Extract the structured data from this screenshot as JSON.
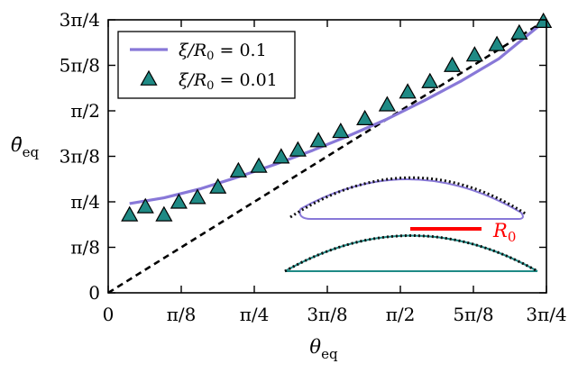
{
  "chart_data": {
    "type": "line",
    "xlabel": "θeq",
    "ylabel": "θ̄eq",
    "xlim": [
      0,
      2.35619
    ],
    "ylim": [
      0,
      2.35619
    ],
    "xticks": [
      0,
      0.392699,
      0.785398,
      1.178097,
      1.570796,
      1.963495,
      2.356194
    ],
    "xtick_labels": [
      "0",
      "π/8",
      "π/4",
      "3π/8",
      "π/2",
      "5π/8",
      "3π/4"
    ],
    "yticks": [
      0,
      0.392699,
      0.785398,
      1.178097,
      1.570796,
      1.963495,
      2.356194
    ],
    "ytick_labels": [
      "0",
      "π/8",
      "π/4",
      "3π/8",
      "π/2",
      "5π/8",
      "3π/4"
    ],
    "grid": false,
    "legend_position": "top-left",
    "series": [
      {
        "name": "ξ/R0 = 0.1",
        "style": "line",
        "color": "#8878d8",
        "x": [
          0.115,
          0.3,
          0.5,
          0.7,
          0.9,
          1.1,
          1.3,
          1.5,
          1.7,
          1.9,
          2.1,
          2.356
        ],
        "y": [
          0.77,
          0.82,
          0.9,
          1.0,
          1.11,
          1.23,
          1.36,
          1.5,
          1.66,
          1.83,
          2.02,
          2.356
        ]
      },
      {
        "name": "ξ/R0 = 0.01",
        "style": "marker",
        "marker": "triangle",
        "color": "#1f8a85",
        "x": [
          0.115,
          0.2,
          0.3,
          0.38,
          0.48,
          0.59,
          0.7,
          0.81,
          0.93,
          1.02,
          1.13,
          1.25,
          1.38,
          1.5,
          1.61,
          1.73,
          1.85,
          1.97,
          2.09,
          2.21,
          2.34
        ],
        "y": [
          0.67,
          0.74,
          0.67,
          0.78,
          0.82,
          0.91,
          1.05,
          1.09,
          1.17,
          1.23,
          1.31,
          1.39,
          1.5,
          1.62,
          1.73,
          1.82,
          1.96,
          2.05,
          2.14,
          2.24,
          2.34
        ]
      },
      {
        "name": "",
        "style": "dashed",
        "color": "#000000",
        "x": [
          0,
          2.356
        ],
        "y": [
          0,
          2.356
        ]
      }
    ],
    "annotations": [
      {
        "text": "R0",
        "color": "#ff0000"
      }
    ]
  }
}
